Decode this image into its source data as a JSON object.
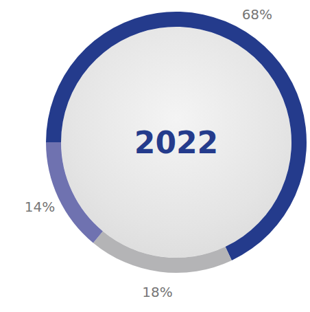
{
  "chart_data": {
    "type": "pie",
    "title": "2022",
    "values": [
      68,
      18,
      14
    ],
    "value_labels": [
      "68%",
      "18%",
      "14%"
    ],
    "colors": [
      "#243b8c",
      "#b4b4b6",
      "#6f72b0"
    ],
    "data_labels": true
  }
}
